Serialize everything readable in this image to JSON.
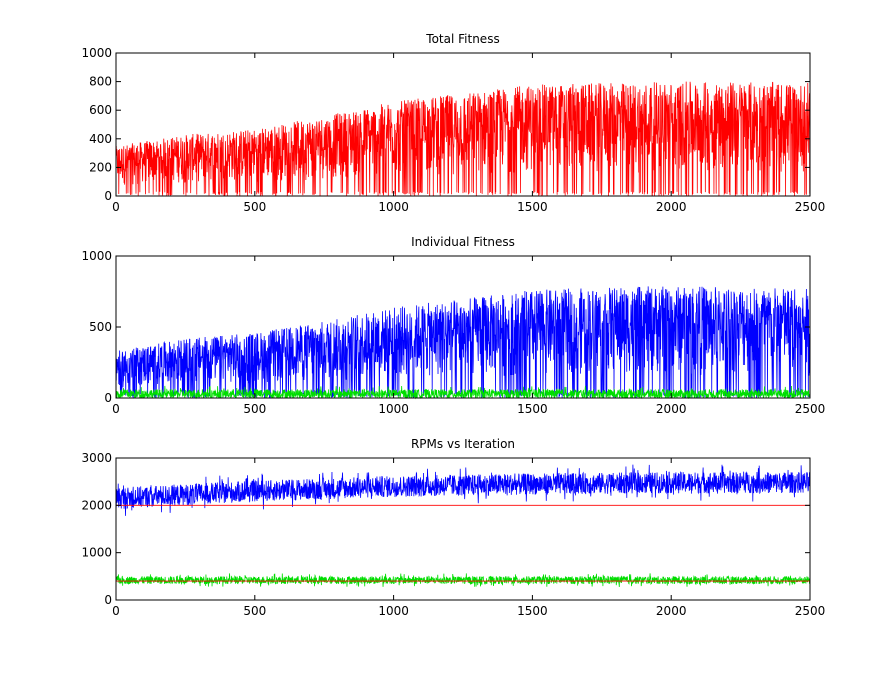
{
  "chart_data": [
    {
      "type": "line",
      "title": "Total Fitness",
      "xlabel": "",
      "ylabel": "",
      "xlim": [
        0,
        2500
      ],
      "ylim": [
        0,
        1000
      ],
      "xticks": [
        0,
        500,
        1000,
        1500,
        2000,
        2500
      ],
      "yticks": [
        0,
        200,
        400,
        600,
        800,
        1000
      ],
      "grid": false,
      "series": [
        {
          "color": "#ff0000",
          "style": "noisy",
          "n": 2500,
          "envelope_x": [
            0,
            250,
            500,
            750,
            1000,
            1250,
            1500,
            1750,
            2000,
            2250,
            2500
          ],
          "envelope_y": [
            350,
            430,
            470,
            560,
            660,
            720,
            780,
            790,
            800,
            800,
            790
          ],
          "min_y": 0
        }
      ]
    },
    {
      "type": "line",
      "title": "Individual Fitness",
      "xlabel": "",
      "ylabel": "",
      "xlim": [
        0,
        2500
      ],
      "ylim": [
        0,
        1000
      ],
      "xticks": [
        0,
        500,
        1000,
        1500,
        2000,
        2500
      ],
      "yticks": [
        0,
        500,
        1000
      ],
      "grid": false,
      "series": [
        {
          "color": "#0000ff",
          "style": "noisy",
          "n": 2500,
          "envelope_x": [
            0,
            250,
            500,
            750,
            1000,
            1250,
            1500,
            1750,
            2000,
            2250,
            2500
          ],
          "envelope_y": [
            330,
            420,
            460,
            540,
            640,
            700,
            760,
            780,
            790,
            790,
            770
          ],
          "min_y": 0
        },
        {
          "color": "#00dd00",
          "style": "band",
          "n": 2500,
          "base": 30,
          "amplitude": 70
        }
      ]
    },
    {
      "type": "line",
      "title": "RPMs vs Iteration",
      "xlabel": "",
      "ylabel": "",
      "xlim": [
        0,
        2500
      ],
      "ylim": [
        0,
        3000
      ],
      "xticks": [
        0,
        500,
        1000,
        1500,
        2000,
        2500
      ],
      "yticks": [
        0,
        1000,
        2000,
        3000
      ],
      "grid": false,
      "series": [
        {
          "color": "#0000ff",
          "style": "band",
          "n": 2500,
          "base_x": [
            0,
            500,
            1000,
            1500,
            2000,
            2500
          ],
          "base_y": [
            2150,
            2300,
            2400,
            2450,
            2480,
            2480
          ],
          "amplitude": 500
        },
        {
          "color": "#ff0000",
          "style": "const",
          "value": 2000
        },
        {
          "color": "#00dd00",
          "style": "band",
          "n": 2500,
          "base": 420,
          "amplitude": 180
        },
        {
          "color": "#ff0000",
          "style": "const",
          "value": 400
        }
      ]
    }
  ]
}
